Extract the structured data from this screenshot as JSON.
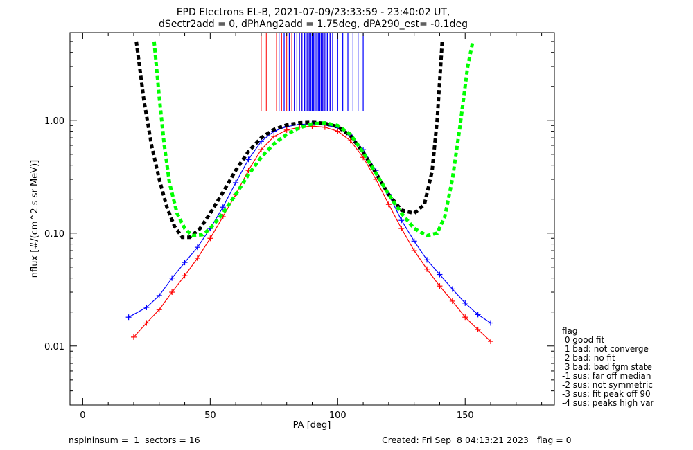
{
  "chart_data": {
    "type": "line",
    "title": "EPD Electrons EL-B, 2021-07-09/23:33:59 - 23:40:02 UT,",
    "subtitle": "dSectr2add = 0, dPhAng2add = 1.75deg, dPA290_est=  -0.1deg",
    "xlabel": "PA [deg]",
    "ylabel": "nflux [#/(cm^2 s sr MeV)]",
    "xlim": [
      -5,
      185
    ],
    "ylim": [
      0.003,
      6.0
    ],
    "yscale": "log",
    "xticks": [
      0,
      50,
      100,
      150
    ],
    "xticklabels": [
      "0",
      "50",
      "100",
      "150"
    ],
    "yticks": [
      0.01,
      0.1,
      1.0
    ],
    "yticklabels": [
      "0.01",
      "0.10",
      "1.00"
    ],
    "grid": false,
    "legend_placement": "right-outside",
    "series": [
      {
        "color": "#0000ff",
        "x": [
          18,
          25,
          30,
          35,
          40,
          45,
          50,
          55,
          60,
          65,
          70,
          75,
          80,
          85,
          90,
          95,
          100,
          105,
          110,
          115,
          120,
          125,
          130,
          135,
          140,
          145,
          150,
          155,
          160
        ],
        "y": [
          0.018,
          0.022,
          0.028,
          0.04,
          0.055,
          0.075,
          0.11,
          0.17,
          0.28,
          0.45,
          0.65,
          0.8,
          0.88,
          0.92,
          0.93,
          0.91,
          0.86,
          0.74,
          0.55,
          0.36,
          0.22,
          0.13,
          0.085,
          0.058,
          0.043,
          0.032,
          0.024,
          0.019,
          0.016
        ]
      },
      {
        "color": "#ff0000",
        "x": [
          20,
          25,
          30,
          35,
          40,
          45,
          50,
          55,
          60,
          65,
          70,
          75,
          80,
          85,
          90,
          95,
          100,
          105,
          110,
          115,
          120,
          125,
          130,
          135,
          140,
          145,
          150,
          155,
          160
        ],
        "y": [
          0.012,
          0.016,
          0.021,
          0.03,
          0.042,
          0.06,
          0.09,
          0.14,
          0.22,
          0.36,
          0.55,
          0.72,
          0.82,
          0.87,
          0.89,
          0.87,
          0.8,
          0.66,
          0.47,
          0.3,
          0.18,
          0.11,
          0.07,
          0.048,
          0.034,
          0.025,
          0.018,
          0.014,
          0.011
        ]
      },
      {
        "color": "#000000",
        "style": "dashed",
        "x": [
          21,
          24,
          27,
          30,
          33,
          36,
          39,
          42,
          46,
          50,
          55,
          60,
          65,
          70,
          75,
          80,
          85,
          90,
          95,
          100,
          105,
          110,
          115,
          120,
          125,
          130,
          134,
          137,
          139,
          141
        ],
        "y": [
          5.0,
          1.5,
          0.6,
          0.3,
          0.17,
          0.115,
          0.092,
          0.092,
          0.11,
          0.15,
          0.23,
          0.36,
          0.53,
          0.7,
          0.83,
          0.91,
          0.95,
          0.96,
          0.94,
          0.88,
          0.73,
          0.52,
          0.34,
          0.22,
          0.16,
          0.15,
          0.18,
          0.35,
          1.0,
          5.0
        ]
      },
      {
        "color": "#00ff00",
        "style": "dashed",
        "x": [
          28,
          30,
          32,
          34,
          37,
          40,
          43,
          47,
          50,
          55,
          60,
          65,
          70,
          75,
          80,
          85,
          90,
          95,
          100,
          105,
          110,
          115,
          120,
          125,
          130,
          135,
          139,
          142,
          145,
          148,
          151,
          153
        ],
        "y": [
          5.0,
          1.6,
          0.6,
          0.28,
          0.15,
          0.11,
          0.095,
          0.097,
          0.11,
          0.15,
          0.22,
          0.33,
          0.47,
          0.62,
          0.75,
          0.86,
          0.93,
          0.95,
          0.9,
          0.75,
          0.52,
          0.34,
          0.22,
          0.15,
          0.11,
          0.095,
          0.1,
          0.14,
          0.3,
          0.9,
          3.0,
          5.0
        ]
      }
    ],
    "vertical_lines": {
      "red_x": [
        70,
        72,
        76,
        78,
        80,
        82,
        83,
        84,
        85,
        86,
        87,
        88,
        89,
        90,
        91,
        92,
        93,
        94,
        95,
        96,
        97
      ],
      "blue_x": [
        77,
        79,
        81,
        83,
        84,
        85,
        86,
        87,
        87.5,
        88,
        88.5,
        89,
        89.5,
        90,
        90.5,
        91,
        91.5,
        92,
        92.5,
        93,
        93.5,
        94,
        94.5,
        95,
        95.5,
        96,
        97,
        98,
        100,
        102,
        104,
        106,
        108,
        110
      ],
      "ymin": 1.2
    },
    "legend": {
      "title": "flag",
      "entries": [
        " 0 good fit",
        " 1 bad: not converge",
        " 2 bad: no fit",
        " 3 bad: bad fgm state",
        "-1 sus: far off median",
        "-2 sus: not symmetric",
        "-3 sus: fit peak off 90",
        "-4 sus: peaks high var"
      ]
    }
  },
  "footer": {
    "left": "nspininsum =  1  sectors = 16",
    "right": "Created: Fri Sep  8 04:13:21 2023   flag = 0"
  }
}
